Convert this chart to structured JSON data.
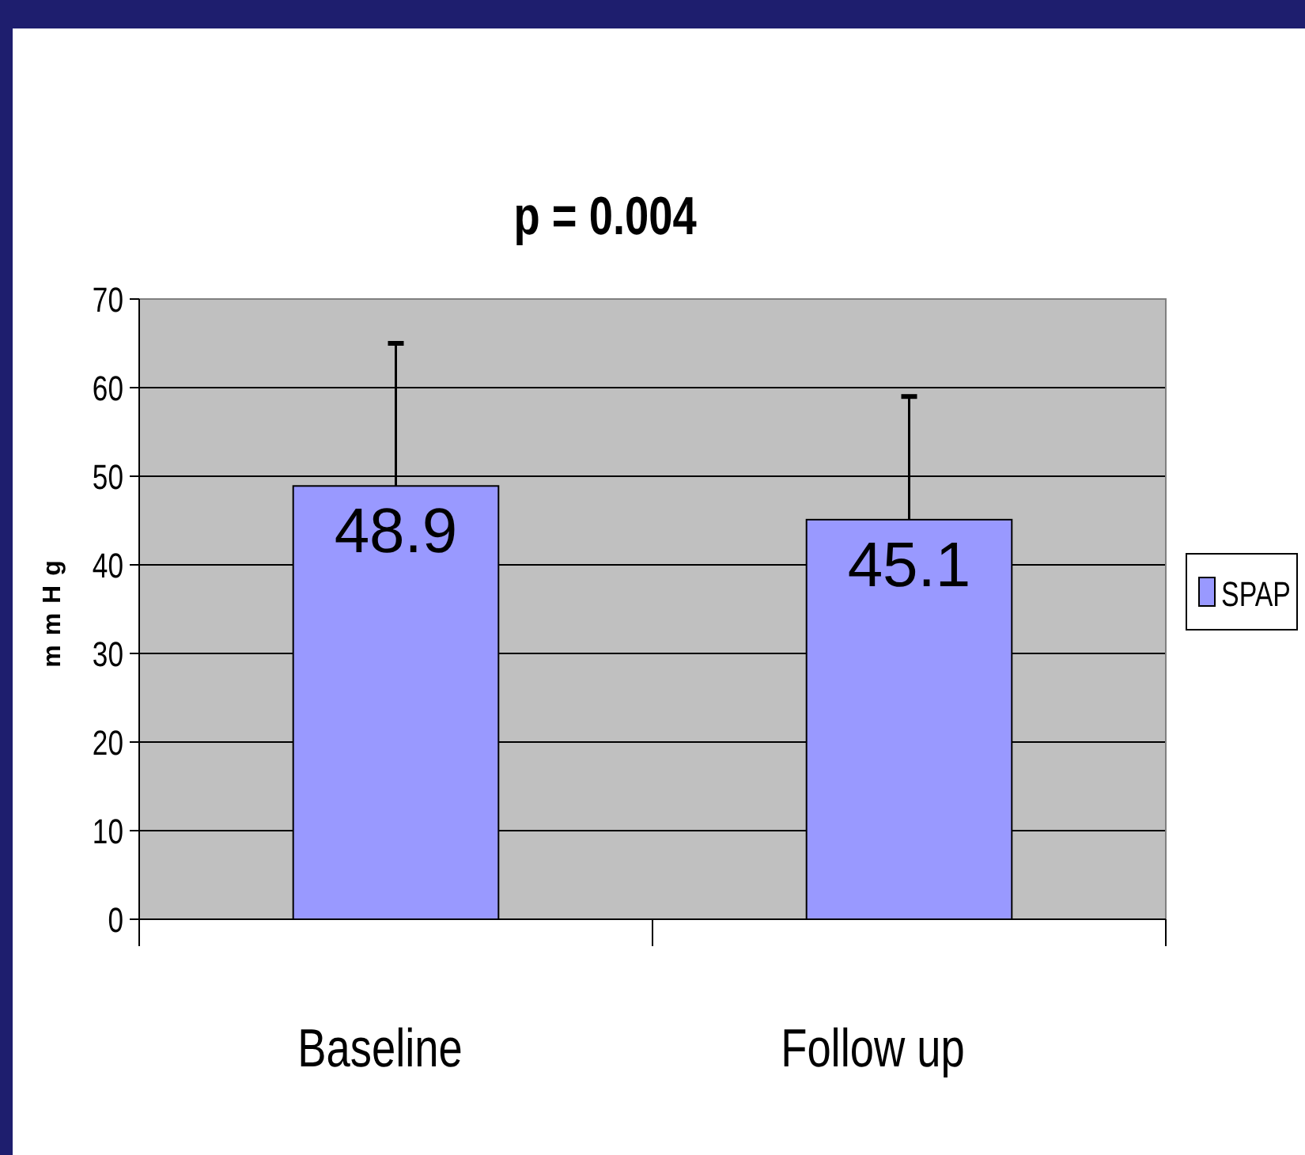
{
  "chart_data": {
    "type": "bar",
    "title": "p = 0.004",
    "ylabel": "mmHg",
    "categories": [
      "Baseline",
      "Follow up"
    ],
    "series": [
      {
        "name": "SPAP",
        "color": "#9999ff",
        "values": [
          48.9,
          45.1
        ],
        "errors": [
          [
            48.9,
            65
          ],
          [
            45.1,
            59
          ]
        ]
      }
    ],
    "ylim": [
      0,
      70
    ],
    "yticks": [
      0,
      10,
      20,
      30,
      40,
      50,
      60,
      70
    ],
    "grid": "y",
    "legend": "right",
    "data_labels": true
  }
}
